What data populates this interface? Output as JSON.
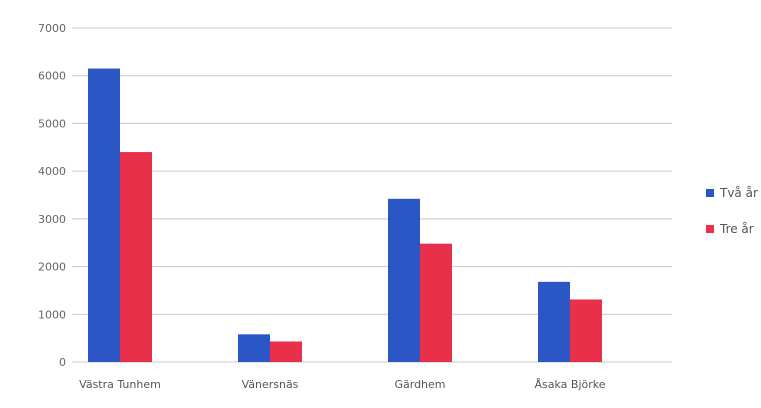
{
  "chart_data": {
    "type": "bar",
    "categories": [
      "Västra Tunhem",
      "Vänersnäs",
      "Gärdhem",
      "Åsaka Björke"
    ],
    "series": [
      {
        "name": "Två år",
        "color": "#2a56c6",
        "values": [
          6150,
          580,
          3420,
          1680
        ]
      },
      {
        "name": "Tre år",
        "color": "#e8304a",
        "values": [
          4400,
          430,
          2480,
          1310
        ]
      }
    ],
    "yticks": [
      0,
      1000,
      2000,
      3000,
      4000,
      5000,
      6000,
      7000
    ],
    "ylim": [
      0,
      7000
    ],
    "grid": true,
    "legend_position": "right"
  }
}
